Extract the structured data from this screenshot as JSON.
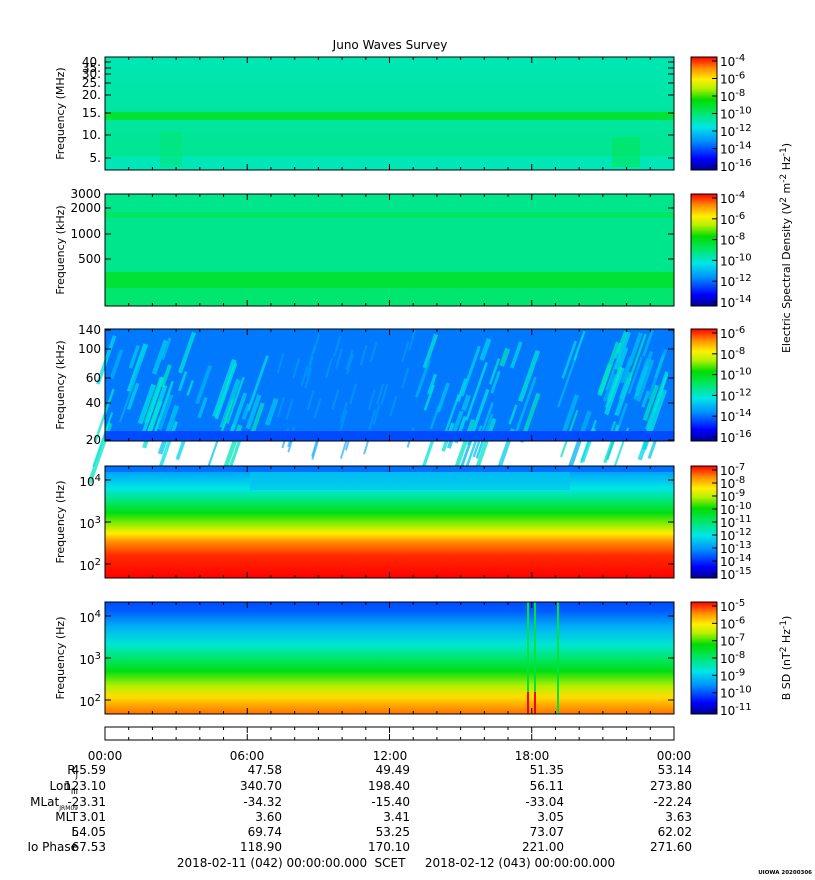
{
  "title": "Juno Waves Survey",
  "panels": [
    {
      "ylabel": "Frequency (MHz)",
      "yticks": [
        "40.",
        "35.",
        "30.",
        "25.",
        "20.",
        "15.",
        "10.",
        "5."
      ],
      "ylim": [
        3.5,
        41
      ],
      "colorbar": {
        "exponents": [
          "-4",
          "-6",
          "-8",
          "-10",
          "-12",
          "-14",
          "-16"
        ],
        "range": [
          -17,
          -4
        ]
      }
    },
    {
      "ylabel": "Frequency (kHz)",
      "yticks": [
        "3000",
        "2000",
        "1000",
        "500"
      ],
      "ylim": [
        150,
        3000
      ],
      "colorbar": {
        "exponents": [
          "-4",
          "-6",
          "-8",
          "-10",
          "-12",
          "-14"
        ],
        "range": [
          -15,
          -4
        ]
      }
    },
    {
      "ylabel": "Frequency (kHz)",
      "yticks": [
        "140",
        "100",
        "60",
        "40",
        "20"
      ],
      "ylim": [
        20,
        140
      ],
      "colorbar": {
        "exponents": [
          "-6",
          "-8",
          "-10",
          "-12",
          "-14",
          "-16"
        ],
        "range": [
          -16,
          -6
        ]
      }
    },
    {
      "ylabel": "Frequency (Hz)",
      "yticks": [
        {
          "base": "10",
          "exp": "4"
        },
        {
          "base": "10",
          "exp": "3"
        },
        {
          "base": "10",
          "exp": "2"
        }
      ],
      "ylim": [
        50,
        20000
      ],
      "colorbar": {
        "exponents": [
          "-7",
          "-8",
          "-9",
          "-10",
          "-11",
          "-12",
          "-13",
          "-14",
          "-15"
        ],
        "range": [
          -15,
          -7
        ]
      }
    },
    {
      "ylabel": "Frequency (Hz)",
      "yticks": [
        {
          "base": "10",
          "exp": "4"
        },
        {
          "base": "10",
          "exp": "3"
        },
        {
          "base": "10",
          "exp": "2"
        }
      ],
      "ylim": [
        50,
        20000
      ],
      "colorbar": {
        "exponents": [
          "-5",
          "-6",
          "-7",
          "-8",
          "-9",
          "-10",
          "-11"
        ],
        "range": [
          -11,
          -4.5
        ]
      }
    }
  ],
  "colorbar_labels": {
    "electric": {
      "prefix": "Electric Spectral Density (V",
      "sup1": "2",
      "mid": " m",
      "sup2": "-2",
      "mid2": " Hz",
      "sup3": "-1",
      "suffix": ")"
    },
    "magnetic": {
      "prefix": "B SD (nT",
      "sup1": "2",
      "mid": " Hz",
      "sup2": "-1",
      "suffix": ")"
    }
  },
  "time_labels": [
    "00:00",
    "06:00",
    "12:00",
    "18:00",
    "00:00"
  ],
  "ephemeris": [
    {
      "label": "R",
      "sub": "J",
      "values": [
        "45.59",
        "47.58",
        "49.49",
        "51.35",
        "53.14"
      ]
    },
    {
      "label": "Lon",
      "sub": "III",
      "values": [
        "123.10",
        "340.70",
        "198.40",
        "56.11",
        "273.80"
      ]
    },
    {
      "label": "MLat",
      "sub": "JRM09",
      "values": [
        "-23.31",
        "-34.32",
        "-15.40",
        "-33.04",
        "-22.24"
      ]
    },
    {
      "label": "MLT",
      "sub": "",
      "values": [
        "3.01",
        "3.60",
        "3.41",
        "3.05",
        "3.63"
      ]
    },
    {
      "label": "L",
      "sub": "",
      "values": [
        "54.05",
        "69.74",
        "53.25",
        "73.07",
        "62.02"
      ]
    },
    {
      "label": "Io Phase",
      "sub": "",
      "values": [
        "67.53",
        "118.90",
        "170.10",
        "221.00",
        "271.60"
      ]
    }
  ],
  "footer": {
    "start": "2018-02-11 (042) 00:00:00.000",
    "scet": "SCET",
    "end": "2018-02-12 (043) 00:00:00.000"
  },
  "stamp": "UIOWA 20200306",
  "chart_data": {
    "type": "heatmap",
    "title": "Juno Waves Survey",
    "xlabel": "SCET",
    "x_range": [
      "2018-02-11 00:00",
      "2018-02-12 00:00"
    ],
    "description_free": true,
    "series": [
      {
        "ylabel": "Frequency (MHz)",
        "ylim": [
          3.5,
          41
        ],
        "clim_log10": [
          -17,
          -4
        ]
      },
      {
        "ylabel": "Frequency (kHz)",
        "ylim": [
          150,
          3000
        ],
        "clim_log10": [
          -15,
          -4
        ]
      },
      {
        "ylabel": "Frequency (kHz)",
        "ylim": [
          20,
          140
        ],
        "clim_log10": [
          -16,
          -6
        ]
      },
      {
        "ylabel": "Frequency (Hz)",
        "ylim": [
          50,
          20000
        ],
        "clim_log10": [
          -15,
          -7
        ]
      },
      {
        "ylabel": "Frequency (Hz)",
        "ylim": [
          50,
          20000
        ],
        "clim_log10": [
          -11,
          -4.5
        ]
      }
    ]
  }
}
